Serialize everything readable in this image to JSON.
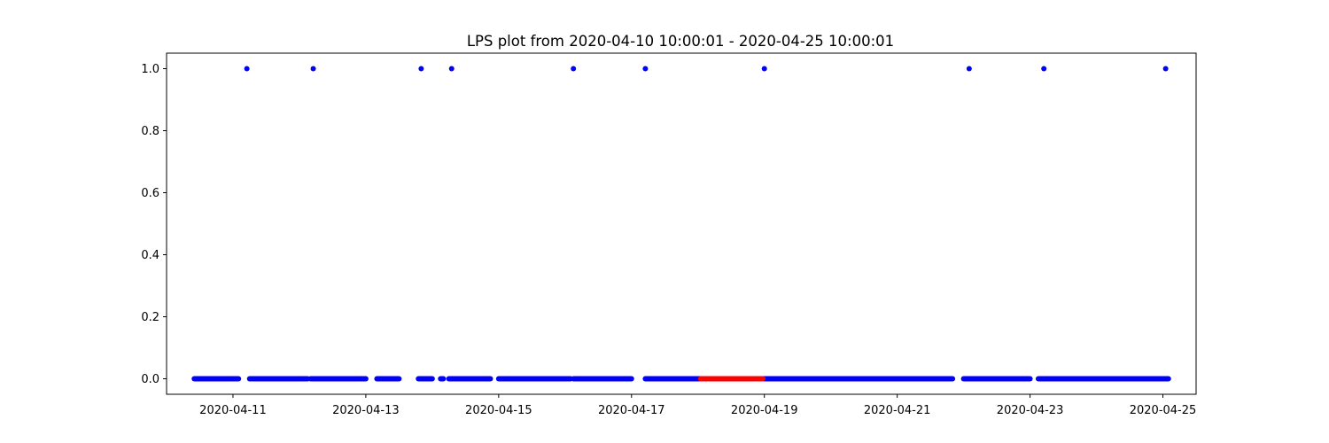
{
  "chart_data": {
    "type": "scatter",
    "title": "LPS plot from 2020-04-10 10:00:01 - 2020-04-25 10:00:01",
    "xlabel": "",
    "ylabel": "",
    "x_axis": {
      "scale": "date",
      "range": [
        "2020-04-10T00:00:00",
        "2020-04-25T12:00:00"
      ],
      "tick_labels": [
        "2020-04-11",
        "2020-04-13",
        "2020-04-15",
        "2020-04-17",
        "2020-04-19",
        "2020-04-21",
        "2020-04-23",
        "2020-04-25"
      ]
    },
    "y_axis": {
      "range": [
        -0.05,
        1.05
      ],
      "tick_labels": [
        "0.0",
        "0.2",
        "0.4",
        "0.6",
        "0.8",
        "1.0"
      ]
    },
    "grid": false,
    "legend": "none",
    "colors": {
      "series_primary": "#0000ff",
      "series_highlight": "#ff0000"
    },
    "series": [
      {
        "color": "#0000ff",
        "marker": "dot",
        "segments_at_0": [
          [
            "2020-04-10T10:00:00",
            "2020-04-11T02:00:00"
          ],
          [
            "2020-04-11T06:00:00",
            "2020-04-12T03:00:00"
          ],
          [
            "2020-04-12T04:00:00",
            "2020-04-13T00:00:00"
          ],
          [
            "2020-04-13T04:00:00",
            "2020-04-13T12:00:00"
          ],
          [
            "2020-04-13T19:00:00",
            "2020-04-14T00:00:00"
          ],
          [
            "2020-04-14T03:00:00",
            "2020-04-14T04:00:00"
          ],
          [
            "2020-04-14T06:00:00",
            "2020-04-14T21:00:00"
          ],
          [
            "2020-04-15T00:00:00",
            "2020-04-16T02:00:00"
          ],
          [
            "2020-04-16T03:00:00",
            "2020-04-17T00:00:00"
          ],
          [
            "2020-04-17T05:00:00",
            "2020-04-18T01:00:00"
          ],
          [
            "2020-04-18T23:30:00",
            "2020-04-21T20:00:00"
          ],
          [
            "2020-04-22T00:00:00",
            "2020-04-23T00:00:00"
          ],
          [
            "2020-04-23T03:00:00",
            "2020-04-25T02:00:00"
          ]
        ],
        "points_at_1": [
          "2020-04-11T05:00:00",
          "2020-04-12T05:00:00",
          "2020-04-13T20:00:00",
          "2020-04-14T07:00:00",
          "2020-04-16T03:00:00",
          "2020-04-17T05:00:00",
          "2020-04-19T00:00:00",
          "2020-04-22T02:00:00",
          "2020-04-23T05:00:00",
          "2020-04-25T01:00:00"
        ]
      },
      {
        "color": "#ff0000",
        "marker": "dot",
        "segments_at_0": [
          [
            "2020-04-18T01:00:00",
            "2020-04-18T23:30:00"
          ]
        ],
        "points_at_1": []
      }
    ]
  }
}
